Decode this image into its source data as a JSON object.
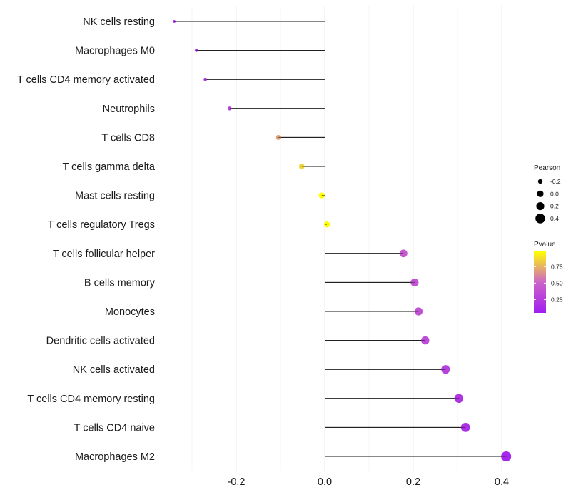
{
  "chart_data": {
    "type": "lollipop",
    "title": "",
    "xlabel": "",
    "ylabel": "",
    "xlim": [
      -0.35,
      0.41
    ],
    "x_ticks": [
      -0.2,
      0.0,
      0.2,
      0.4
    ],
    "x_tick_labels": [
      "-0.2",
      "0.0",
      "0.2",
      "0.4"
    ],
    "grid": true,
    "categories": [
      "NK cells resting",
      "Macrophages M0",
      "T cells CD4 memory activated",
      "Neutrophils",
      "T cells CD8",
      "T cells gamma delta",
      "Mast cells resting",
      "T cells regulatory  Tregs",
      "T cells follicular helper",
      "B cells memory",
      "Monocytes",
      "Dendritic cells activated",
      "NK cells activated",
      "T cells CD4 memory resting",
      "T cells CD4 naive",
      "Macrophages M2"
    ],
    "pearson": [
      -0.34,
      -0.29,
      -0.27,
      -0.215,
      -0.105,
      -0.052,
      -0.007,
      0.005,
      0.178,
      0.203,
      0.212,
      0.227,
      0.273,
      0.303,
      0.318,
      0.41
    ],
    "pvalue": [
      0.1,
      0.15,
      0.2,
      0.3,
      0.7,
      0.85,
      0.98,
      0.97,
      0.45,
      0.4,
      0.38,
      0.35,
      0.28,
      0.2,
      0.17,
      0.1
    ],
    "legend_size": {
      "title": "Pearson",
      "values": [
        -0.2,
        0.0,
        0.2,
        0.4
      ],
      "labels": [
        "-0.2",
        "0.0",
        "0.2",
        "0.4"
      ]
    },
    "legend_color": {
      "title": "Pvalue",
      "low": 0.05,
      "high": 0.98,
      "ticks": [
        0.25,
        0.5,
        0.75
      ],
      "tick_labels": [
        "0.25",
        "0.50",
        "0.75"
      ],
      "color_low": "#a01ef0",
      "color_high": "#ffff00"
    },
    "legend_position": "right"
  }
}
